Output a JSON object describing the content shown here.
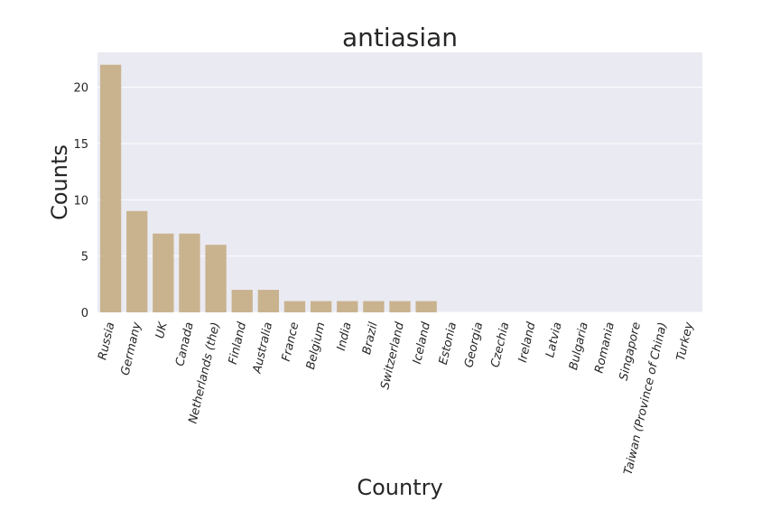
{
  "chart_data": {
    "type": "bar",
    "title": "antiasian",
    "xlabel": "Country",
    "ylabel": "Counts",
    "categories": [
      "Russia",
      "Germany",
      "UK",
      "Canada",
      "Netherlands (the)",
      "Finland",
      "Australia",
      "France",
      "Belgium",
      "India",
      "Brazil",
      "Switzerland",
      "Iceland",
      "Estonia",
      "Georgia",
      "Czechia",
      "Ireland",
      "Latvia",
      "Bulgaria",
      "Romania",
      "Singapore",
      "Taiwan (Province of China)",
      "Turkey"
    ],
    "values": [
      22,
      9,
      7,
      7,
      6,
      2,
      2,
      1,
      1,
      1,
      1,
      1,
      1,
      0,
      0,
      0,
      0,
      0,
      0,
      0,
      0,
      0,
      0
    ],
    "ylim": [
      0,
      23.1
    ],
    "yticks": [
      0,
      5,
      10,
      15,
      20
    ],
    "grid": true,
    "colors": {
      "bar": "#c9b38f",
      "plot_background": "#eaeaf2",
      "grid": "#ffffff"
    }
  }
}
